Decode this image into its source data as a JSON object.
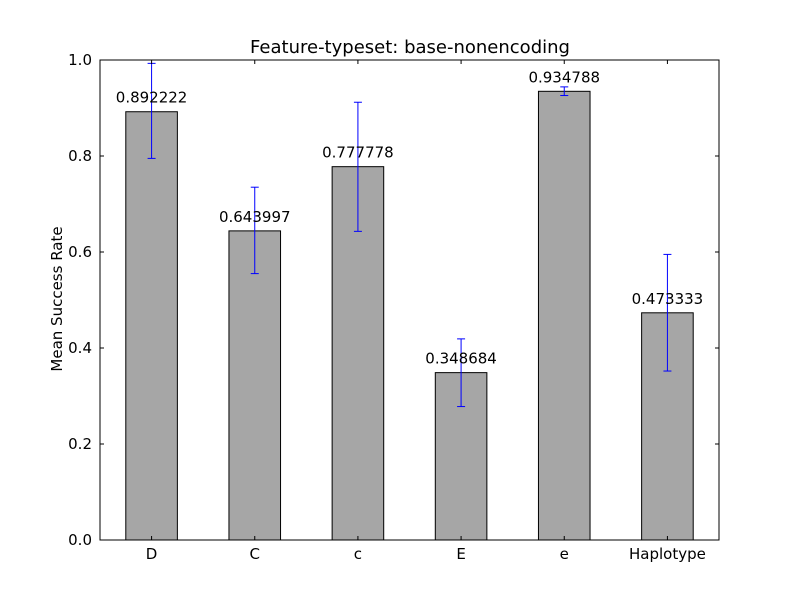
{
  "chart_data": {
    "type": "bar",
    "title": "Feature-typeset: base-nonencoding",
    "xlabel": "",
    "ylabel": "Mean Success Rate",
    "categories": [
      "D",
      "C",
      "c",
      "E",
      "e",
      "Haplotype"
    ],
    "values": [
      0.892222,
      0.643997,
      0.777778,
      0.348684,
      0.934788,
      0.473333
    ],
    "value_labels": [
      "0.892222",
      "0.643997",
      "0.777778",
      "0.348684",
      "0.934788",
      "0.473333"
    ],
    "error_bars": [
      {
        "low": 0.795,
        "high": 0.993
      },
      {
        "low": 0.555,
        "high": 0.735
      },
      {
        "low": 0.643,
        "high": 0.912
      },
      {
        "low": 0.278,
        "high": 0.419
      },
      {
        "low": 0.926,
        "high": 0.944
      },
      {
        "low": 0.352,
        "high": 0.595
      }
    ],
    "ylim": [
      0.0,
      1.0
    ],
    "yticks": [
      "0.0",
      "0.2",
      "0.4",
      "0.6",
      "0.8",
      "1.0"
    ],
    "grid": false,
    "colors": {
      "bar_fill": "#a6a6a6",
      "bar_edge": "#000000",
      "error_bar": "#0000ff"
    }
  }
}
